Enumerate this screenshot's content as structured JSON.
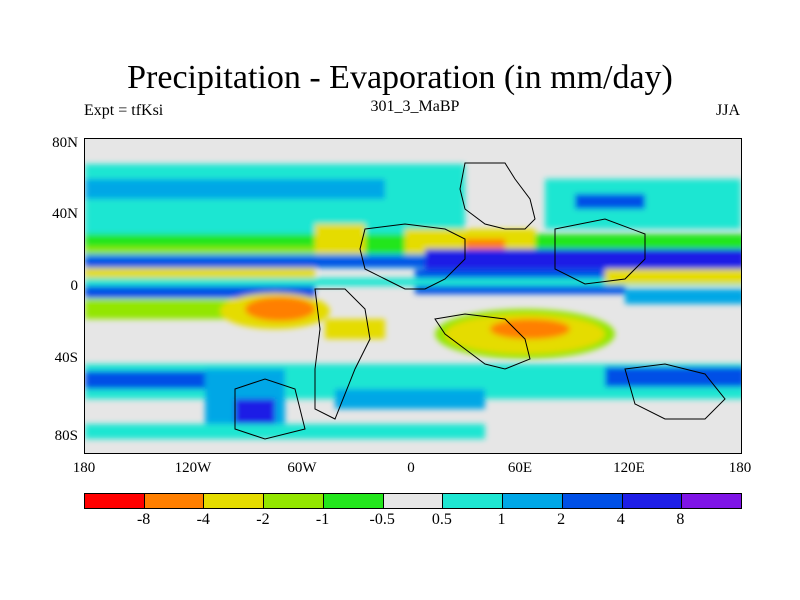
{
  "title": "Precipitation - Evaporation (in mm/day)",
  "left_label": "Expt = tfKsi",
  "center_label": "301_3_MaBP",
  "right_label": "JJA",
  "y_ticks": [
    "80N",
    "40N",
    "0",
    "40S",
    "80S"
  ],
  "x_ticks": [
    "180",
    "120W",
    "60W",
    "0",
    "60E",
    "120E",
    "180"
  ],
  "colorbar": {
    "colors": [
      "#ff0000",
      "#ff7f00",
      "#e5dc00",
      "#93e600",
      "#23e61c",
      "#e6e6e6",
      "#1ee6d2",
      "#00a7e6",
      "#0050e6",
      "#1e1ee6",
      "#7f14e6"
    ],
    "labels": [
      "-8",
      "-4",
      "-2",
      "-1",
      "-0.5",
      "0.5",
      "1",
      "2",
      "4",
      "8"
    ]
  }
}
